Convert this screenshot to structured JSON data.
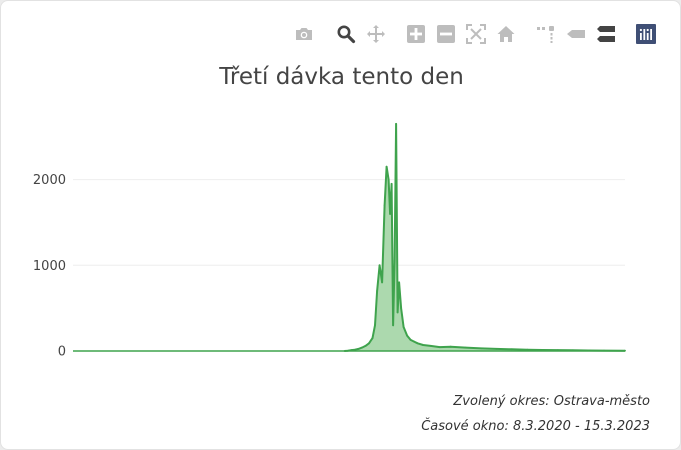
{
  "title": "Třetí dávka tento den",
  "modebar": [
    {
      "name": "camera-icon",
      "icon": "camera"
    },
    {
      "name": "zoom-icon",
      "icon": "zoom"
    },
    {
      "name": "pan-icon",
      "icon": "pan"
    },
    {
      "name": "zoom-in-icon",
      "icon": "zoom-in"
    },
    {
      "name": "zoom-out-icon",
      "icon": "zoom-out"
    },
    {
      "name": "autoscale-icon",
      "icon": "autoscale"
    },
    {
      "name": "home-icon",
      "icon": "home"
    },
    {
      "name": "spike-lines-icon",
      "icon": "spikes"
    },
    {
      "name": "hover-closest-icon",
      "icon": "hover-closest"
    },
    {
      "name": "hover-compare-icon",
      "icon": "hover-compare"
    },
    {
      "name": "plotly-logo-icon",
      "icon": "plotly"
    }
  ],
  "colors": {
    "line": "#3fa34d",
    "fill": "#acd9ae",
    "grid": "#eeeeee",
    "zeroline": "#444444",
    "icon": "#bdbdbd",
    "icon_active": "#444444",
    "logo_bg": "#3f4f75"
  },
  "chart_data": {
    "type": "area",
    "title": "Třetí dávka tento den",
    "x": [
      "2021-09-01",
      "2021-09-08",
      "2021-09-15",
      "2021-09-22",
      "2021-09-29",
      "2021-10-06",
      "2021-10-13",
      "2021-10-20",
      "2021-10-27",
      "2021-11-01",
      "2021-11-05",
      "2021-11-10",
      "2021-11-15",
      "2021-11-20",
      "2021-11-24",
      "2021-11-28",
      "2021-12-01",
      "2021-12-04",
      "2021-12-07",
      "2021-12-10",
      "2021-12-13",
      "2021-12-16",
      "2021-12-19",
      "2021-12-23",
      "2021-12-28",
      "2022-01-04",
      "2022-01-11",
      "2022-01-18",
      "2022-01-25",
      "2022-02-05",
      "2022-02-20",
      "2022-03-10",
      "2022-04-01",
      "2022-05-01",
      "2022-06-01",
      "2022-07-01",
      "2022-08-01",
      "2022-09-01",
      "2022-10-01",
      "2022-11-01",
      "2022-12-01",
      "2023-01-01",
      "2023-02-01",
      "2023-03-15"
    ],
    "y": [
      0,
      3,
      10,
      15,
      25,
      40,
      60,
      90,
      150,
      300,
      700,
      1000,
      800,
      1700,
      2150,
      2000,
      1600,
      1950,
      300,
      1050,
      2650,
      450,
      800,
      500,
      280,
      180,
      130,
      110,
      90,
      70,
      60,
      45,
      50,
      40,
      30,
      25,
      20,
      15,
      12,
      10,
      8,
      6,
      5,
      3
    ],
    "xrange": [
      "2020-03-08",
      "2023-03-15"
    ],
    "ylim": [
      0,
      2800
    ],
    "yticks": [
      0,
      1000,
      2000
    ],
    "ytick_labels": [
      "0",
      "1000",
      "2000"
    ],
    "grid": true
  },
  "annotations": [
    "Zvolený okres: Ostrava-město",
    "Časové okno: 8.3.2020 - 15.3.2023"
  ]
}
